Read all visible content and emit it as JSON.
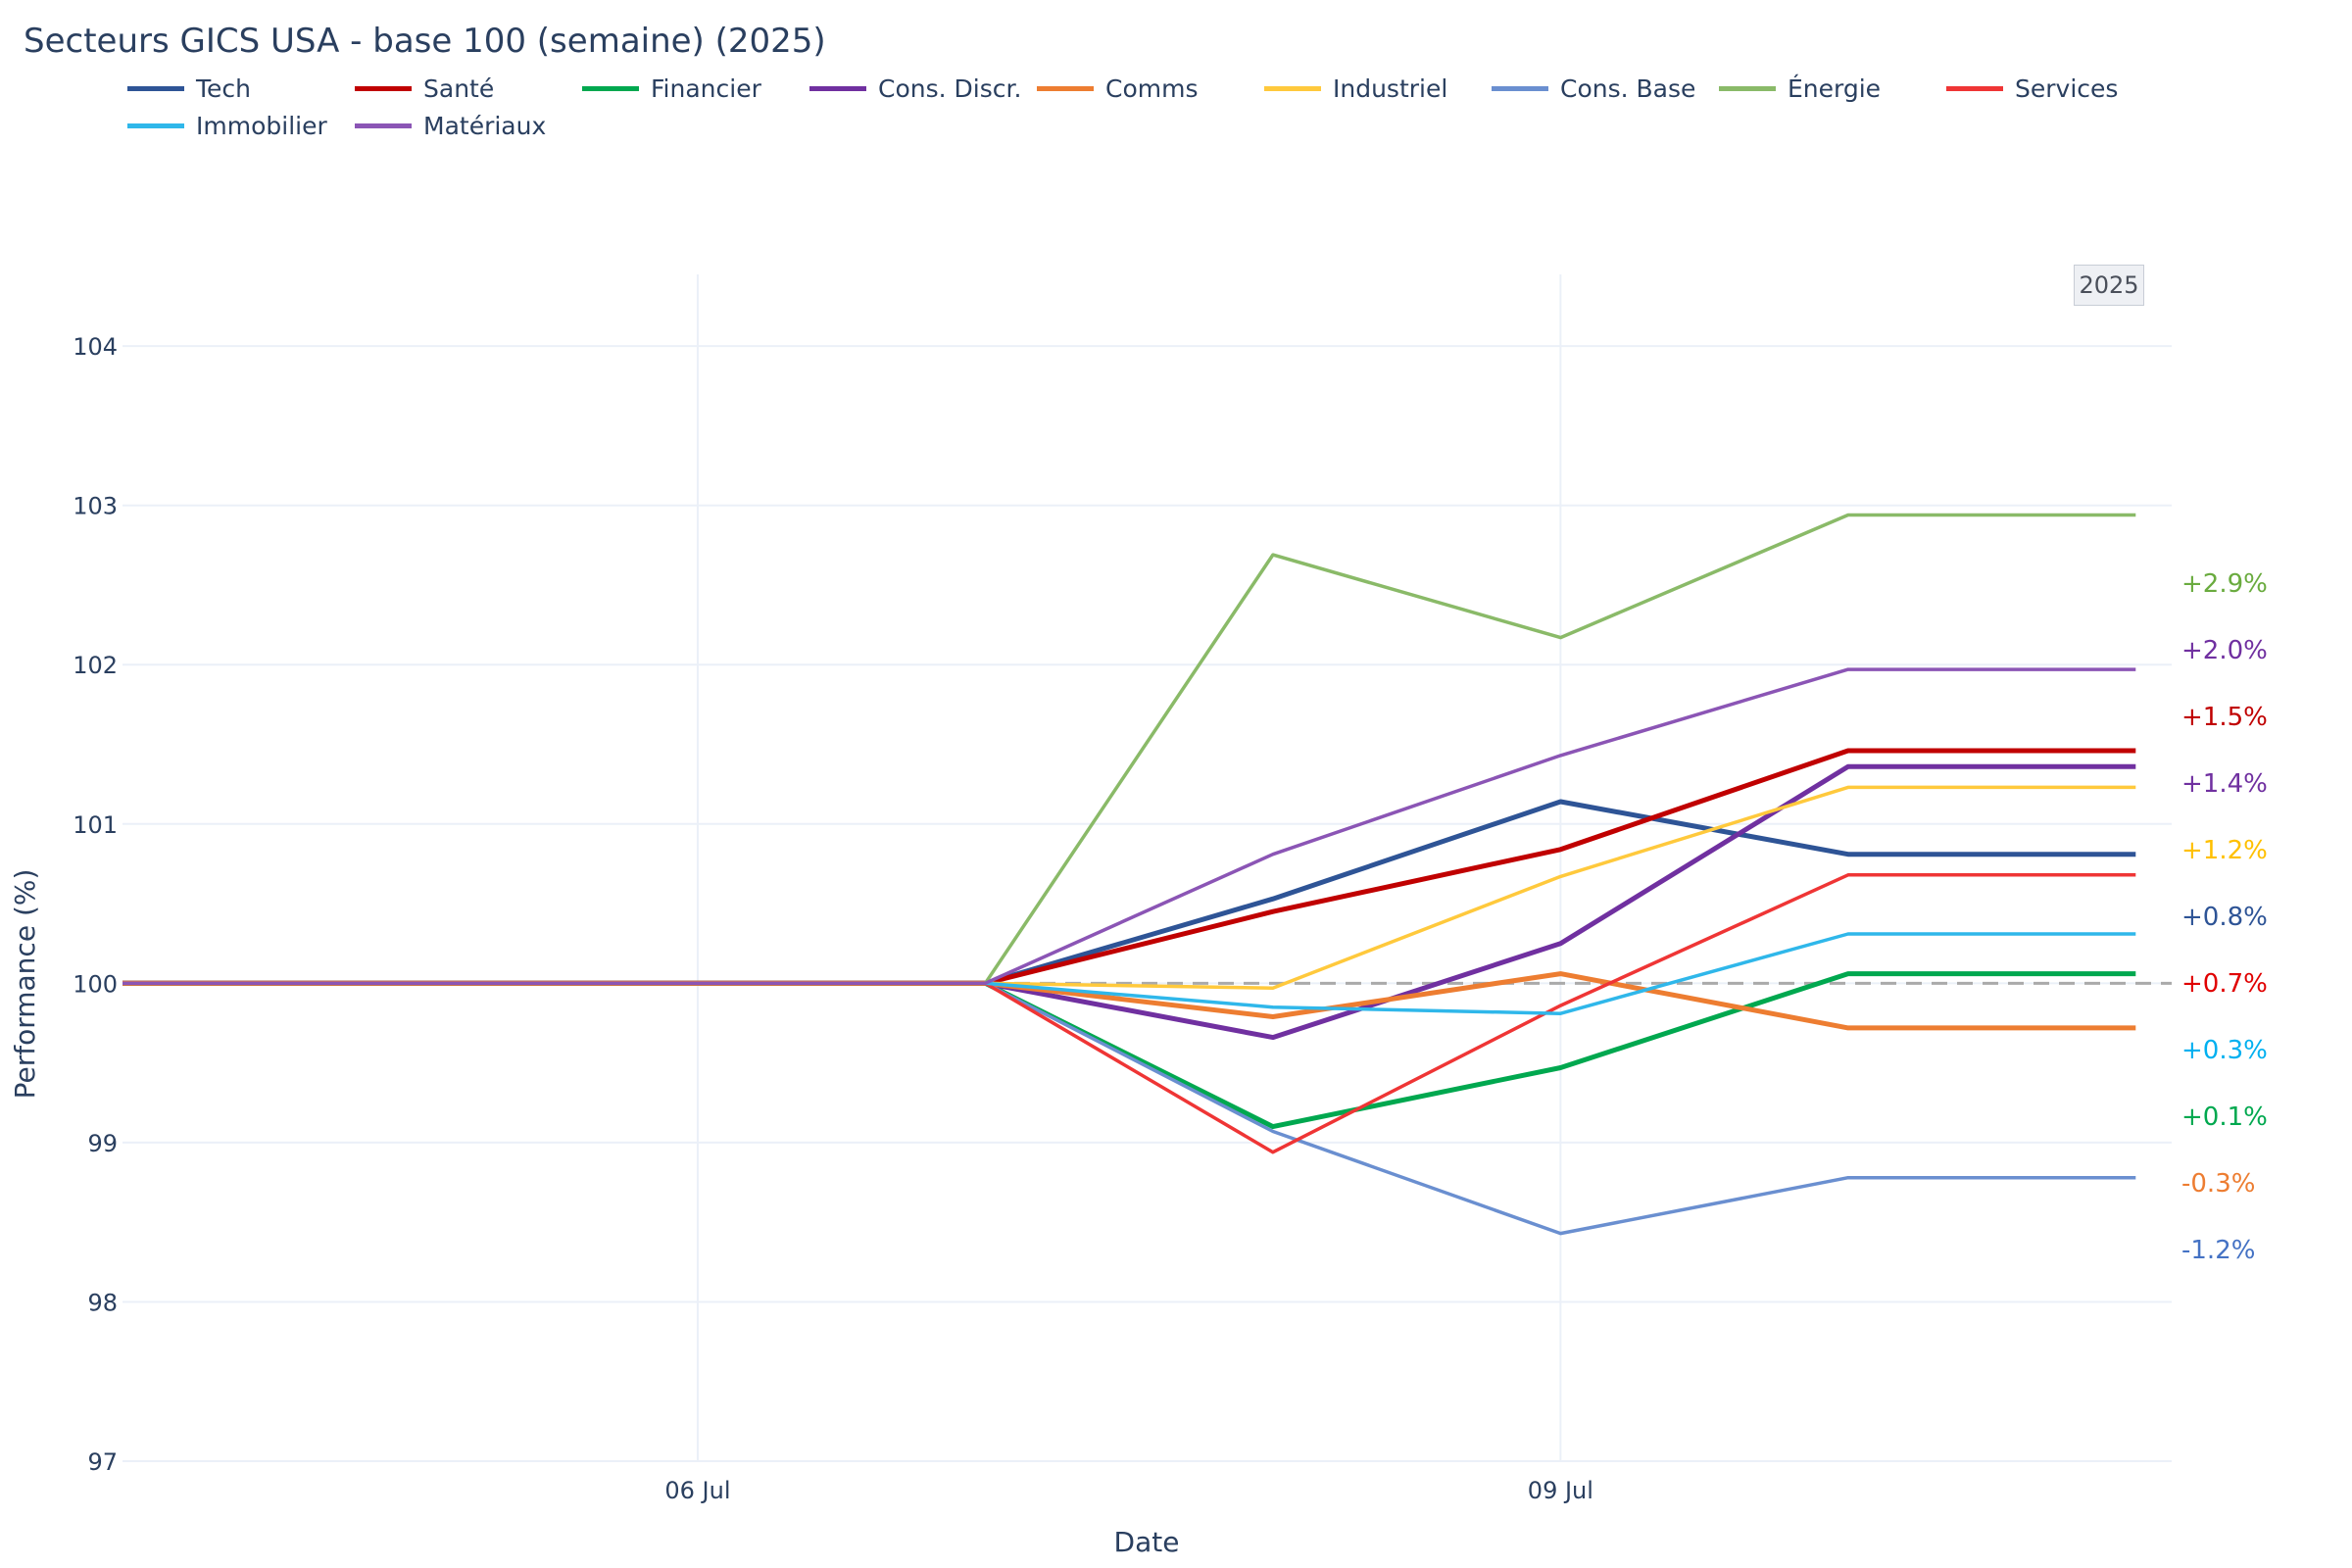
{
  "title": "Secteurs GICS USA - base 100 (semaine) (2025)",
  "year_badge": "2025",
  "chart_data": {
    "type": "line",
    "title": "Secteurs GICS USA - base 100 (semaine) (2025)",
    "xlabel": "Date",
    "ylabel": "Performance (%)",
    "ylim": [
      97,
      104.45
    ],
    "y_ticks": [
      "97",
      "98",
      "99",
      "100",
      "101",
      "102",
      "103",
      "104"
    ],
    "x_ticks": [
      {
        "label": "06 Jul",
        "x": "2025-07-06"
      },
      {
        "label": "09 Jul",
        "x": "2025-07-09"
      }
    ],
    "x": [
      "2025-07-04",
      "2025-07-07",
      "2025-07-08",
      "2025-07-09",
      "2025-07-10",
      "2025-07-11"
    ],
    "xlim": [
      "2025-07-04",
      "2025-07-11T03:00"
    ],
    "reference_line": 100,
    "grid": true,
    "legend_position": "top",
    "series": [
      {
        "name": "Tech",
        "color": "#2e5496",
        "width": 5,
        "values": [
          100,
          100,
          100.53,
          101.14,
          100.81,
          100.81
        ],
        "end_label": "+0.8%"
      },
      {
        "name": "Santé",
        "color": "#c00000",
        "width": 5,
        "values": [
          100,
          100,
          100.45,
          100.84,
          101.46,
          101.46
        ],
        "end_label": "+1.5%"
      },
      {
        "name": "Financier",
        "color": "#00a84f",
        "width": 5,
        "values": [
          100,
          100,
          99.1,
          99.47,
          100.06,
          100.06
        ],
        "end_label": "+0.1%"
      },
      {
        "name": "Cons. Discr.",
        "color": "#7030a0",
        "width": 5,
        "values": [
          100,
          100,
          99.66,
          100.25,
          101.36,
          101.36
        ],
        "end_label": "+1.4%"
      },
      {
        "name": "Comms",
        "color": "#ed7d31",
        "width": 5,
        "values": [
          100,
          100,
          99.79,
          100.06,
          99.72,
          99.72
        ],
        "end_label": "-0.3%"
      },
      {
        "name": "Industriel",
        "color": "#ffc93c",
        "width": 3.5,
        "values": [
          100,
          100,
          99.97,
          100.67,
          101.23,
          101.23
        ],
        "end_label": "+1.2%"
      },
      {
        "name": "Cons. Base",
        "color": "#6a8fd0",
        "width": 3.5,
        "values": [
          100,
          100,
          99.07,
          98.43,
          98.78,
          98.78
        ],
        "end_label": "-1.2%"
      },
      {
        "name": "Énergie",
        "color": "#8aba68",
        "width": 3.5,
        "values": [
          100,
          100,
          102.69,
          102.17,
          102.94,
          102.94
        ],
        "end_label": "+2.9%"
      },
      {
        "name": "Services",
        "color": "#ef3535",
        "width": 3.5,
        "values": [
          100,
          100,
          98.94,
          99.86,
          100.68,
          100.68
        ],
        "end_label": "+0.7%"
      },
      {
        "name": "Immobilier",
        "color": "#2fb7ea",
        "width": 3.5,
        "values": [
          100,
          100,
          99.85,
          99.81,
          100.31,
          100.31
        ],
        "end_label": "+0.3%"
      },
      {
        "name": "Matériaux",
        "color": "#8b55b5",
        "width": 3.5,
        "values": [
          100,
          100,
          100.81,
          101.43,
          101.97,
          101.97
        ],
        "end_label": "+2.0%"
      }
    ],
    "end_labels": [
      {
        "text": "+2.9%",
        "color": "#6aab3f"
      },
      {
        "text": "+2.0%",
        "color": "#7030a0"
      },
      {
        "text": "+1.5%",
        "color": "#c00000"
      },
      {
        "text": "+1.4%",
        "color": "#7030a0"
      },
      {
        "text": "+1.2%",
        "color": "#ffc000"
      },
      {
        "text": "+0.8%",
        "color": "#2e5496"
      },
      {
        "text": "+0.7%",
        "color": "#e00000"
      },
      {
        "text": "+0.3%",
        "color": "#00b0f0"
      },
      {
        "text": "+0.1%",
        "color": "#00a84f"
      },
      {
        "text": "-0.3%",
        "color": "#ed7d31"
      },
      {
        "text": "-1.2%",
        "color": "#4472c4"
      }
    ]
  }
}
